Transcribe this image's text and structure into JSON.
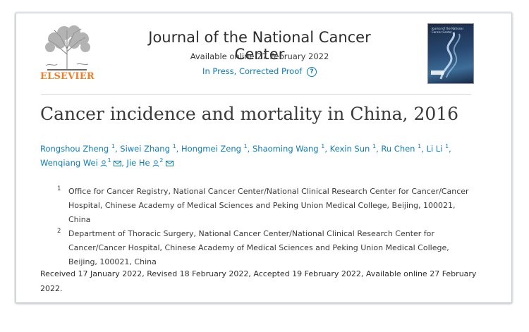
{
  "publisher": {
    "name": "ELSEVIER"
  },
  "journal": {
    "title": "Journal of the National Cancer Center",
    "available_online": "Available online 27 February 2022",
    "status": "In Press, Corrected Proof",
    "cover_text": "Journal of the National Cancer Center"
  },
  "article": {
    "title": "Cancer incidence and mortality in China, 2016",
    "authors": [
      {
        "name": "Rongshou Zheng",
        "sup": "1"
      },
      {
        "name": "Siwei Zhang",
        "sup": "1"
      },
      {
        "name": "Hongmei Zeng",
        "sup": "1"
      },
      {
        "name": "Shaoming Wang",
        "sup": "1"
      },
      {
        "name": "Kexin Sun",
        "sup": "1"
      },
      {
        "name": "Ru Chen",
        "sup": "1"
      },
      {
        "name": "Li Li",
        "sup": "1"
      },
      {
        "name": "Wenqiang Wei",
        "sup": "1"
      },
      {
        "name": "Jie He",
        "sup": "2"
      }
    ],
    "affiliations": [
      {
        "num": "1",
        "text": "Office for Cancer Registry, National Cancer Center/National Clinical Research Center for Cancer/Cancer Hospital, Chinese Academy of Medical Sciences and Peking Union Medical College, Beijing, 100021, China"
      },
      {
        "num": "2",
        "text": "Department of Thoracic Surgery, National Cancer Center/National Clinical Research Center for Cancer/Cancer Hospital, Chinese Academy of Medical Sciences and Peking Union Medical College, Beijing, 100021, China"
      }
    ],
    "history": "Received 17 January 2022, Revised 18 February 2022, Accepted 19 February 2022, Available online 27 February 2022."
  },
  "colors": {
    "link": "#0c7dbb",
    "elsevier_orange": "#f07e26",
    "text": "#2e2e2e"
  },
  "icons": {
    "help": "help-circle-icon",
    "person": "person-icon",
    "mail": "mail-icon"
  }
}
